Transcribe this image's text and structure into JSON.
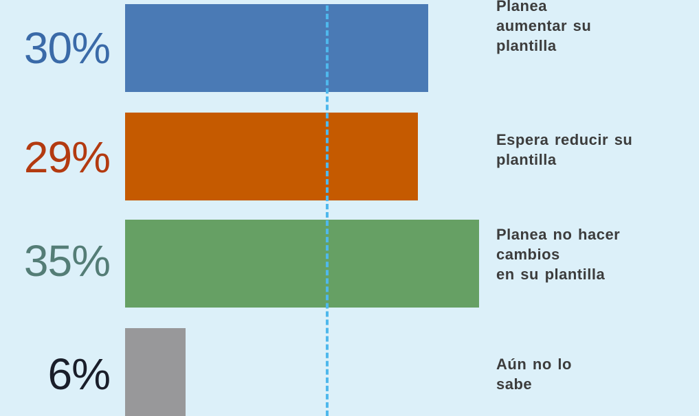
{
  "chart_data": {
    "type": "bar",
    "orientation": "horizontal",
    "value_labels": [
      "30%",
      "29%",
      "35%",
      "6%"
    ],
    "values": [
      30,
      29,
      35,
      6
    ],
    "categories": [
      [
        "Planea",
        "aumentar  su",
        "plantilla"
      ],
      [
        "Espera reducir su",
        "plantilla"
      ],
      [
        "Planea  no hacer",
        "cambios",
        "en su plantilla"
      ],
      [
        "Aún no lo",
        "sabe"
      ]
    ],
    "colors": [
      "#4a7ab5",
      "#c55a00",
      "#66a064",
      "#98989a"
    ],
    "label_colors": [
      "#3a6aa8",
      "#b33a10",
      "#547d76",
      "#1a1e2a"
    ],
    "reference_line": {
      "style": "dashed",
      "color": "#4fb8ec"
    }
  }
}
